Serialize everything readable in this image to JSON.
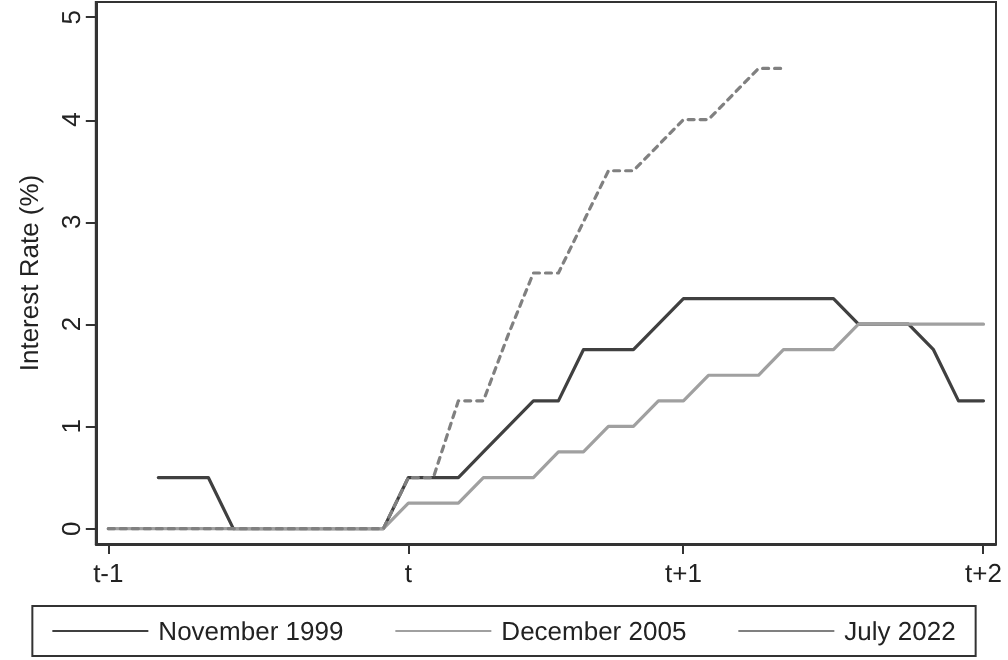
{
  "chart_data": {
    "type": "line",
    "ylabel": "Interest Rate (%)",
    "categories": [
      "t-1",
      null,
      null,
      null,
      null,
      null,
      null,
      null,
      null,
      null,
      null,
      null,
      "t",
      null,
      null,
      null,
      null,
      null,
      null,
      null,
      null,
      null,
      null,
      "t+1",
      null,
      null,
      null,
      null,
      null,
      null,
      null,
      null,
      null,
      null,
      null,
      "t+2"
    ],
    "ylim": [
      -0.15,
      5.15
    ],
    "yticks": [
      0,
      1,
      2,
      3,
      4,
      5
    ],
    "grid": false,
    "legend": "bottom",
    "marker": "none",
    "series": [
      {
        "name": "November 1999",
        "color": "#404040",
        "line_style": "solid",
        "values": [
          null,
          null,
          0.5,
          0.5,
          0.5,
          0,
          0,
          0,
          0,
          0,
          0,
          0,
          0.5,
          0.5,
          0.5,
          0.75,
          1.0,
          1.25,
          1.25,
          1.75,
          1.75,
          1.75,
          2.0,
          2.25,
          2.25,
          2.25,
          2.25,
          2.25,
          2.25,
          2.25,
          2,
          2,
          2,
          1.75,
          1.25,
          1.25
        ]
      },
      {
        "name": "December 2005",
        "color": "#a0a0a0",
        "line_style": "solid",
        "values": [
          0,
          0,
          0,
          0,
          0,
          0,
          0,
          0,
          0,
          0,
          0,
          0,
          0.25,
          0.25,
          0.25,
          0.5,
          0.5,
          0.5,
          0.75,
          0.75,
          1,
          1,
          1.25,
          1.25,
          1.5,
          1.5,
          1.5,
          1.75,
          1.75,
          1.75,
          2,
          2,
          2,
          2,
          2,
          2
        ]
      },
      {
        "name": "July 2022",
        "color": "#808080",
        "line_style": "dashed",
        "values": [
          0,
          0,
          0,
          0,
          0,
          0,
          0,
          0,
          0,
          0,
          0,
          0,
          0.5,
          0.5,
          1.25,
          1.25,
          1.9,
          2.5,
          2.5,
          3.0,
          3.5,
          3.5,
          3.75,
          4,
          4,
          4.25,
          4.5,
          4.5,
          null,
          null,
          null,
          null,
          null,
          null,
          null,
          null
        ]
      }
    ]
  }
}
